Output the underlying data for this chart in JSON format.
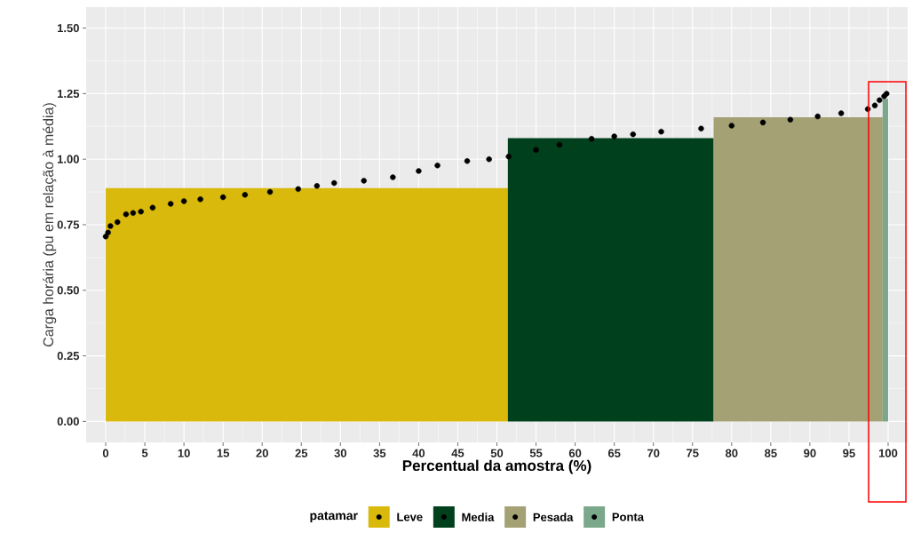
{
  "chart_data": {
    "type": "histogram",
    "xlabel": "Percentual da amostra (%)",
    "ylabel": "Carga horária (pu em relação à média)",
    "legend_title": "patamar",
    "series": [
      {
        "name": "Leve",
        "color": "#d9b90b",
        "bins": [
          0,
          51.4
        ],
        "values": [
          0.89
        ]
      },
      {
        "name": "Media",
        "color": "#01401c",
        "bins": [
          51.4,
          77.7
        ],
        "values": [
          1.08
        ]
      },
      {
        "name": "Pesada",
        "color": "#a4a174",
        "bins": [
          77.7,
          99.3
        ],
        "values": [
          1.16
        ]
      },
      {
        "name": "Ponta",
        "color": "#7ba88a",
        "bins": [
          99.3,
          100
        ],
        "values": [
          1.23
        ]
      },
      {
        "type": "scatter",
        "color": "#000000",
        "x": [
          0,
          0.3,
          0.6,
          1.5,
          2.6,
          3.5,
          4.5,
          6,
          8.3,
          10,
          12.1,
          15,
          17.8,
          21,
          24.6,
          27,
          29.2,
          33,
          36.7,
          40,
          42.4,
          46.2,
          49,
          51.5,
          55,
          58,
          62.1,
          65,
          67.4,
          71,
          76.1,
          80,
          84,
          87.5,
          91,
          94,
          97.4,
          98.3,
          98.9,
          99.5,
          99.8
        ],
        "values": [
          0.705,
          0.72,
          0.745,
          0.76,
          0.79,
          0.795,
          0.8,
          0.815,
          0.83,
          0.84,
          0.847,
          0.855,
          0.864,
          0.875,
          0.886,
          0.898,
          0.909,
          0.918,
          0.931,
          0.955,
          0.976,
          0.993,
          1.0,
          1.01,
          1.035,
          1.055,
          1.078,
          1.087,
          1.095,
          1.105,
          1.117,
          1.128,
          1.14,
          1.151,
          1.163,
          1.175,
          1.191,
          1.205,
          1.225,
          1.24,
          1.25
        ]
      }
    ],
    "marker": "circle",
    "xlim": [
      -2.5,
      102.5
    ],
    "ylim": [
      -0.08,
      1.58
    ],
    "xticks": [
      0,
      5,
      10,
      15,
      20,
      25,
      30,
      35,
      40,
      45,
      50,
      55,
      60,
      65,
      70,
      75,
      80,
      85,
      90,
      95,
      100
    ],
    "yticks": [
      {
        "value": 0,
        "label": "0.00"
      },
      {
        "value": 0.25,
        "label": "0.25"
      },
      {
        "value": 0.5,
        "label": "0.50"
      },
      {
        "value": 0.75,
        "label": "0.75"
      },
      {
        "value": 1,
        "label": "1.00"
      },
      {
        "value": 1.25,
        "label": "1.25"
      },
      {
        "value": 1.5,
        "label": "1.50"
      }
    ],
    "grid": true,
    "legend": "bottom"
  }
}
